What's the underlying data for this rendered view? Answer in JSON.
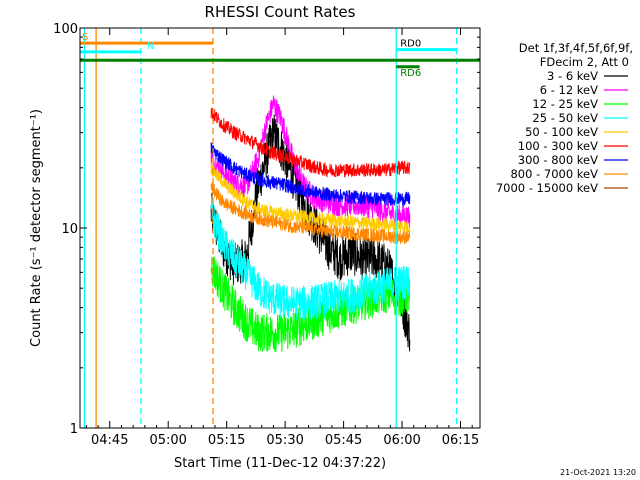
{
  "chart_data": {
    "type": "line",
    "title": "RHESSI Count Rates",
    "xlabel": "Start Time (11-Dec-12 04:37:22)",
    "ylabel": "Count Rate (s⁻¹ detector segment⁻¹)",
    "x_range": [
      "04:37:22",
      "06:20:00"
    ],
    "x_ticks": [
      "04:45",
      "05:00",
      "05:15",
      "05:30",
      "05:45",
      "06:00",
      "06:15"
    ],
    "y_scale": "log",
    "ylim": [
      1,
      100
    ],
    "y_ticks": [
      "1",
      "10",
      "100"
    ],
    "legend_header": [
      "Det 1f,3f,4f,5f,6f,9f,",
      "FDecim 2, Att 0"
    ],
    "legend_position": "right",
    "grid": false,
    "data_gap": [
      "04:37:22",
      "05:11:30"
    ],
    "series": [
      {
        "name": "3 - 6 keV",
        "color": "#000000",
        "times": [
          "05:11",
          "05:14",
          "05:17",
          "05:20",
          "05:23",
          "05:25",
          "05:27",
          "05:29",
          "05:32",
          "05:35",
          "05:38",
          "05:41",
          "05:44",
          "05:47",
          "05:50",
          "05:53",
          "05:56",
          "05:59",
          "06:01",
          "06:02"
        ],
        "values": [
          12,
          8,
          6.5,
          7,
          16,
          22,
          30,
          25,
          18,
          13,
          10,
          8,
          7,
          7.5,
          7,
          7,
          6.5,
          5,
          3.5,
          3
        ]
      },
      {
        "name": "6 - 12 keV",
        "color": "#ff00ff",
        "times": [
          "05:11",
          "05:14",
          "05:17",
          "05:20",
          "05:23",
          "05:25",
          "05:27",
          "05:29",
          "05:32",
          "05:35",
          "05:38",
          "05:41",
          "05:44",
          "05:47",
          "05:50",
          "05:53",
          "05:56",
          "05:59",
          "06:01",
          "06:02"
        ],
        "values": [
          22,
          19,
          17,
          16,
          22,
          32,
          42,
          35,
          22,
          16,
          14,
          13.5,
          13,
          13,
          13,
          12.5,
          12,
          11.5,
          11.5,
          11
        ]
      },
      {
        "name": "12 - 25 keV",
        "color": "#00ff00",
        "times": [
          "05:11",
          "05:14",
          "05:17",
          "05:20",
          "05:23",
          "05:26",
          "05:29",
          "05:32",
          "05:35",
          "05:38",
          "05:41",
          "05:44",
          "05:47",
          "05:50",
          "05:53",
          "05:56",
          "05:59",
          "06:01",
          "06:02"
        ],
        "values": [
          6.5,
          5,
          4,
          3.4,
          3,
          3,
          3,
          3.1,
          3.3,
          3.5,
          3.7,
          3.9,
          4.1,
          4.3,
          4.5,
          4.7,
          4.5,
          4.6,
          4.6
        ]
      },
      {
        "name": "25 - 50 keV",
        "color": "#00ffff",
        "times": [
          "05:11",
          "05:14",
          "05:17",
          "05:20",
          "05:23",
          "05:26",
          "05:29",
          "05:32",
          "05:35",
          "05:38",
          "05:41",
          "05:44",
          "05:47",
          "05:50",
          "05:53",
          "05:56",
          "05:59",
          "06:01",
          "06:02"
        ],
        "values": [
          12,
          8.5,
          7,
          6,
          5,
          4.5,
          4.3,
          4.2,
          4.2,
          4.3,
          4.4,
          4.5,
          4.6,
          4.8,
          5,
          5.2,
          5.3,
          5.4,
          5.4
        ]
      },
      {
        "name": "50 - 100 keV",
        "color": "#ffcc00",
        "times": [
          "05:11",
          "05:14",
          "05:17",
          "05:20",
          "05:23",
          "05:26",
          "05:29",
          "05:32",
          "05:35",
          "05:38",
          "05:41",
          "05:44",
          "05:47",
          "05:50",
          "05:53",
          "05:56",
          "05:59",
          "06:01",
          "06:02"
        ],
        "values": [
          20,
          17,
          15,
          13.5,
          12.5,
          12,
          11.8,
          11.5,
          11.3,
          11.1,
          11,
          10.8,
          10.7,
          10.6,
          10.5,
          10.4,
          10.3,
          10.2,
          10.1
        ]
      },
      {
        "name": "100 - 300 keV",
        "color": "#ff0000",
        "times": [
          "05:11",
          "05:14",
          "05:17",
          "05:20",
          "05:23",
          "05:26",
          "05:29",
          "05:32",
          "05:35",
          "05:38",
          "05:41",
          "05:44",
          "05:47",
          "05:50",
          "05:53",
          "05:56",
          "05:59",
          "06:01",
          "06:02"
        ],
        "values": [
          38,
          33,
          30,
          28,
          26,
          24,
          23,
          22,
          21,
          20,
          19.5,
          19.5,
          19.5,
          19.5,
          19.5,
          19.5,
          20,
          20,
          20
        ]
      },
      {
        "name": "300 - 800 keV",
        "color": "#0000ff",
        "times": [
          "05:11",
          "05:14",
          "05:17",
          "05:20",
          "05:23",
          "05:26",
          "05:29",
          "05:32",
          "05:35",
          "05:38",
          "05:41",
          "05:44",
          "05:47",
          "05:50",
          "05:53",
          "05:56",
          "05:59",
          "06:01",
          "06:02"
        ],
        "values": [
          25,
          22,
          20,
          18.5,
          17.5,
          17,
          16.5,
          16,
          15.5,
          15,
          14.7,
          14.5,
          14.3,
          14.2,
          14,
          14,
          14,
          14,
          14
        ]
      },
      {
        "name": "800 - 7000 keV",
        "color": "#ff8800",
        "times": [
          "05:11",
          "05:14",
          "05:17",
          "05:20",
          "05:23",
          "05:26",
          "05:29",
          "05:32",
          "05:35",
          "05:38",
          "05:41",
          "05:44",
          "05:47",
          "05:50",
          "05:53",
          "05:56",
          "05:59",
          "06:01",
          "06:02"
        ],
        "values": [
          16,
          13.5,
          12.5,
          11.8,
          11.2,
          10.8,
          10.5,
          10.2,
          10,
          9.8,
          9.6,
          9.5,
          9.4,
          9.3,
          9.2,
          9.1,
          9,
          9,
          9
        ]
      },
      {
        "name": "7000 - 15000 keV",
        "color": "#aa4400",
        "times": [],
        "values": []
      }
    ],
    "attenuator_bars": [
      {
        "label": "S",
        "color": "#ff8800",
        "start": "04:37:22",
        "end": "05:11:30",
        "y": 84
      },
      {
        "label": "N",
        "color": "#00ffff",
        "start": "04:37:22",
        "end": "04:53:00",
        "y": 76
      },
      {
        "label": "",
        "color": "#008000",
        "start": "04:37:22",
        "end": "06:20:00",
        "y": 69
      },
      {
        "label": "RD6",
        "color": "#008000",
        "start": "05:58:30",
        "end": "06:04:30",
        "y": 64
      },
      {
        "label": "RD0",
        "color": "#00ffff",
        "start": "05:58:30",
        "end": "06:14:00",
        "y": 78
      }
    ],
    "markers": [
      {
        "time": "04:38:30",
        "color": "#00ffff",
        "style": "solid"
      },
      {
        "time": "04:41:30",
        "color": "#ff8800",
        "style": "solid"
      },
      {
        "time": "04:53:00",
        "color": "#00ffff",
        "style": "dashed"
      },
      {
        "time": "05:11:30",
        "color": "#ff8800",
        "style": "dashed"
      },
      {
        "time": "05:58:30",
        "color": "#00ffff",
        "style": "solid"
      },
      {
        "time": "06:14:00",
        "color": "#00ffff",
        "style": "dashed"
      }
    ]
  },
  "footer": {
    "timestamp": "21-Oct-2021 13:20"
  }
}
